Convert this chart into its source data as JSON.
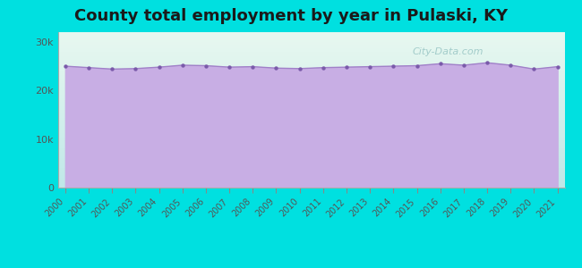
{
  "title": "County total employment by year in Pulaski, KY",
  "years": [
    2000,
    2001,
    2002,
    2003,
    2004,
    2005,
    2006,
    2007,
    2008,
    2009,
    2010,
    2011,
    2012,
    2013,
    2014,
    2015,
    2016,
    2017,
    2018,
    2019,
    2020,
    2021
  ],
  "values": [
    25000,
    24700,
    24400,
    24500,
    24800,
    25200,
    25100,
    24800,
    24900,
    24600,
    24500,
    24700,
    24800,
    24900,
    25000,
    25100,
    25500,
    25200,
    25700,
    25200,
    24400,
    24900
  ],
  "ylim": [
    0,
    32000
  ],
  "yticks": [
    0,
    10000,
    20000,
    30000
  ],
  "ytick_labels": [
    "0",
    "10k",
    "20k",
    "30k"
  ],
  "fill_color": "#c8aee4",
  "line_color": "#a080c8",
  "dot_color": "#7a5aaa",
  "outer_background": "#00e0e0",
  "plot_bg_top": "#e8f8f0",
  "plot_bg_bottom": "#c0e8e8",
  "title_fontsize": 13,
  "title_color": "#1a1a1a",
  "axis_label_color": "#555555",
  "watermark": "City-Data.com"
}
